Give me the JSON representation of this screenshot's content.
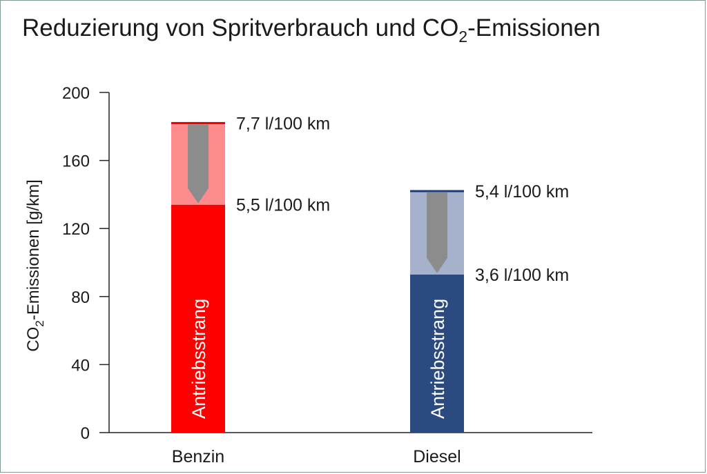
{
  "chart_data": {
    "type": "bar",
    "title_main": "Reduzierung von Spritverbrauch und CO",
    "title_sub": "2",
    "title_tail": "-Emissionen",
    "ylabel_main": "CO",
    "ylabel_sub": "2",
    "ylabel_tail": "-Emissionen [g/km]",
    "ylim": [
      0,
      200
    ],
    "yticks": [
      0,
      40,
      80,
      120,
      160,
      200
    ],
    "categories": [
      "Benzin",
      "Diesel"
    ],
    "bars": [
      {
        "category": "Benzin",
        "before": 182,
        "after": 134,
        "before_label": "7,7  l/100 km",
        "after_label": "5,5 l/100 km",
        "inner_label": "Antriebsstrang",
        "color_main": "#ff0000",
        "color_light": "#ff8c8c",
        "color_line": "#e00000"
      },
      {
        "category": "Diesel",
        "before": 142,
        "after": 93,
        "before_label": "5,4  l/100 km",
        "after_label": "3,6 l/100 km",
        "inner_label": "Antriebsstrang",
        "color_main": "#2b4a80",
        "color_light": "#a6b2cc",
        "color_line": "#1e3a78"
      }
    ],
    "arrow_color": "#8c8c8c",
    "grid": false,
    "legend": "none"
  }
}
